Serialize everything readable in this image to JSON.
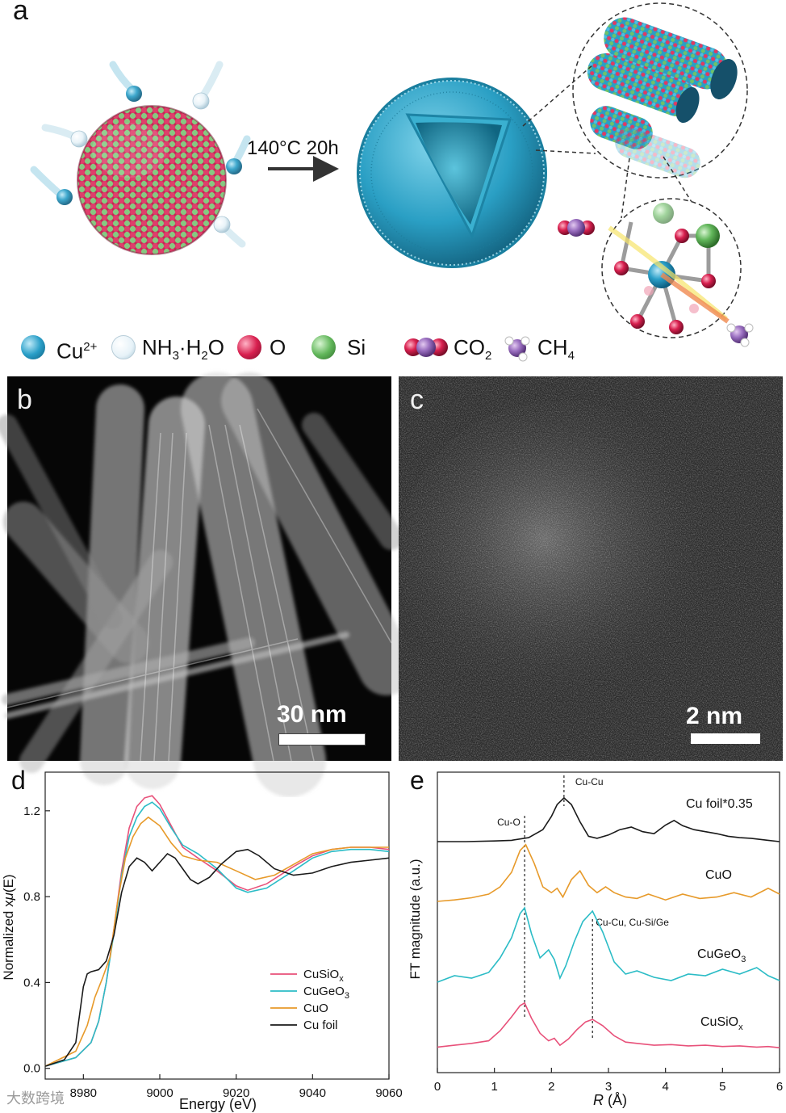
{
  "panels": {
    "a": {
      "letter": "a",
      "condition": "140°C 20h",
      "legend": [
        {
          "label": "Cu",
          "sup": "2+",
          "color": "#2a9fc8",
          "icon": "cu-sphere-icon"
        },
        {
          "label": "NH",
          "sub1": "3",
          "mid": "·H",
          "sub2": "2",
          "tail": "O",
          "color": "#dfeef5",
          "icon": "ammonia-water-sphere-icon"
        },
        {
          "label": "O",
          "color": "#d8204f",
          "icon": "oxygen-sphere-icon"
        },
        {
          "label": "Si",
          "color": "#62b75b",
          "icon": "silicon-sphere-icon"
        },
        {
          "label": "CO",
          "sub": "2",
          "icon": "co2-molecule-icon"
        },
        {
          "label": "CH",
          "sub": "4",
          "icon": "ch4-molecule-icon"
        }
      ]
    },
    "b": {
      "letter": "b",
      "scale": "30 nm"
    },
    "c": {
      "letter": "c",
      "scale": "2 nm"
    },
    "d": {
      "letter": "d"
    },
    "e": {
      "letter": "e"
    }
  },
  "chart_data": [
    {
      "id": "d",
      "type": "line",
      "xlabel": "Energy (eV)",
      "ylabel_parts": [
        "Normalized x",
        "μ",
        "(E)"
      ],
      "xlim": [
        8970,
        9060
      ],
      "ylim": [
        -0.05,
        1.38
      ],
      "xticks": [
        8980,
        9000,
        9020,
        9040,
        9060
      ],
      "yticks": [
        0.0,
        0.4,
        0.8,
        1.2
      ],
      "xtick_labels": [
        "8980",
        "9000",
        "9020",
        "9040",
        "9060"
      ],
      "ytick_labels": [
        "0.0",
        "0.4",
        "0.8",
        "1.2"
      ],
      "legend_position": "lower-right",
      "series": [
        {
          "name": "CuSiOx",
          "label_main": "CuSiO",
          "label_sub": "x",
          "color": "#e8517a",
          "x": [
            8970,
            8978,
            8982,
            8984,
            8986,
            8988,
            8990,
            8992,
            8994,
            8996,
            8998,
            9000,
            9003,
            9006,
            9010,
            9015,
            9020,
            9023,
            9028,
            9035,
            9040,
            9045,
            9050,
            9055,
            9060
          ],
          "y": [
            0.01,
            0.05,
            0.12,
            0.22,
            0.4,
            0.65,
            0.92,
            1.12,
            1.22,
            1.26,
            1.27,
            1.23,
            1.13,
            1.03,
            0.98,
            0.92,
            0.85,
            0.83,
            0.86,
            0.94,
            0.99,
            1.02,
            1.03,
            1.03,
            1.02
          ]
        },
        {
          "name": "CuGeO3",
          "label_main": "CuGeO",
          "label_sub": "3",
          "color": "#2bbcc6",
          "x": [
            8970,
            8978,
            8982,
            8984,
            8986,
            8988,
            8990,
            8992,
            8994,
            8996,
            8998,
            9000,
            9003,
            9006,
            9010,
            9015,
            9020,
            9023,
            9028,
            9035,
            9040,
            9045,
            9050,
            9055,
            9060
          ],
          "y": [
            0.01,
            0.05,
            0.12,
            0.22,
            0.4,
            0.63,
            0.9,
            1.08,
            1.17,
            1.22,
            1.24,
            1.21,
            1.12,
            1.04,
            1.0,
            0.93,
            0.84,
            0.82,
            0.84,
            0.92,
            0.98,
            1.01,
            1.02,
            1.02,
            1.01
          ]
        },
        {
          "name": "CuO",
          "label_main": "CuO",
          "label_sub": "",
          "color": "#e79a2a",
          "x": [
            8970,
            8978,
            8981,
            8983,
            8985,
            8987,
            8989,
            8991,
            8993,
            8995,
            8997,
            9000,
            9003,
            9006,
            9010,
            9015,
            9020,
            9025,
            9030,
            9035,
            9040,
            9045,
            9050,
            9055,
            9060
          ],
          "y": [
            0.01,
            0.08,
            0.2,
            0.33,
            0.42,
            0.52,
            0.78,
            0.98,
            1.08,
            1.14,
            1.17,
            1.13,
            1.05,
            0.99,
            0.97,
            0.96,
            0.92,
            0.88,
            0.9,
            0.95,
            1.0,
            1.02,
            1.03,
            1.03,
            1.03
          ]
        },
        {
          "name": "Cu foil",
          "label_main": "Cu foil",
          "label_sub": "",
          "color": "#1a1a1a",
          "x": [
            8970,
            8975,
            8978,
            8979,
            8980,
            8981,
            8982,
            8984,
            8986,
            8988,
            8990,
            8992,
            8994,
            8996,
            8998,
            9000,
            9002,
            9004,
            9006,
            9008,
            9010,
            9013,
            9016,
            9020,
            9023,
            9026,
            9030,
            9035,
            9040,
            9045,
            9050,
            9055,
            9060
          ],
          "y": [
            0.01,
            0.04,
            0.12,
            0.25,
            0.38,
            0.44,
            0.45,
            0.46,
            0.5,
            0.62,
            0.82,
            0.94,
            0.98,
            0.96,
            0.92,
            0.96,
            1.0,
            0.98,
            0.93,
            0.88,
            0.86,
            0.89,
            0.95,
            1.01,
            1.02,
            0.99,
            0.93,
            0.9,
            0.91,
            0.94,
            0.96,
            0.97,
            0.98
          ]
        }
      ]
    },
    {
      "id": "e",
      "type": "line",
      "xlabel_italic": "R",
      "xlabel_rest": " (Å)",
      "ylabel": "FT magnitude (a.u.)",
      "xlim": [
        0,
        6
      ],
      "xticks": [
        0,
        1,
        2,
        3,
        4,
        5,
        6
      ],
      "xtick_labels": [
        "0",
        "1",
        "2",
        "3",
        "4",
        "5",
        "6"
      ],
      "annotations": [
        {
          "text": "Cu-Cu",
          "x": 2.22
        },
        {
          "text": "Cu-O",
          "x": 1.53
        },
        {
          "text": "Cu-Cu, Cu-Si/Ge",
          "x": 2.72
        }
      ],
      "series": [
        {
          "name": "Cu foil*0.35",
          "label_main": "Cu foil*0.35",
          "label_sub": "",
          "color": "#1a1a1a",
          "x": [
            0,
            0.5,
            1,
            1.3,
            1.6,
            1.85,
            2.0,
            2.1,
            2.22,
            2.35,
            2.5,
            2.65,
            2.8,
            3.0,
            3.2,
            3.4,
            3.6,
            3.8,
            4.0,
            4.15,
            4.3,
            4.5,
            4.7,
            4.9,
            5.1,
            5.3,
            5.5,
            5.8,
            6.0
          ],
          "y": [
            0.0,
            0.0,
            0.01,
            0.02,
            0.06,
            0.18,
            0.38,
            0.56,
            0.66,
            0.56,
            0.3,
            0.08,
            0.05,
            0.1,
            0.18,
            0.22,
            0.15,
            0.12,
            0.25,
            0.32,
            0.24,
            0.18,
            0.15,
            0.12,
            0.08,
            0.06,
            0.05,
            0.02,
            0.0
          ]
        },
        {
          "name": "CuO",
          "label_main": "CuO",
          "label_sub": "",
          "color": "#e79a2a",
          "x": [
            0,
            0.3,
            0.6,
            0.9,
            1.1,
            1.3,
            1.45,
            1.55,
            1.7,
            1.85,
            2.0,
            2.1,
            2.2,
            2.35,
            2.5,
            2.65,
            2.8,
            2.95,
            3.1,
            3.3,
            3.5,
            3.7,
            4.0,
            4.3,
            4.6,
            4.9,
            5.2,
            5.5,
            5.8,
            6.0
          ],
          "y": [
            0.0,
            0.02,
            0.05,
            0.1,
            0.2,
            0.4,
            0.7,
            0.78,
            0.52,
            0.2,
            0.12,
            0.18,
            0.06,
            0.3,
            0.42,
            0.22,
            0.12,
            0.2,
            0.12,
            0.06,
            0.04,
            0.1,
            0.02,
            0.1,
            0.04,
            0.06,
            0.12,
            0.06,
            0.18,
            0.1
          ]
        },
        {
          "name": "CuGeO3",
          "label_main": "CuGeO",
          "label_sub": "3",
          "color": "#2bbcc6",
          "x": [
            0,
            0.3,
            0.6,
            0.9,
            1.1,
            1.3,
            1.45,
            1.53,
            1.65,
            1.8,
            1.95,
            2.05,
            2.15,
            2.25,
            2.4,
            2.55,
            2.72,
            2.9,
            3.1,
            3.3,
            3.5,
            3.8,
            4.1,
            4.4,
            4.7,
            5.0,
            5.3,
            5.6,
            5.8,
            6.0
          ],
          "y": [
            0.0,
            0.08,
            0.05,
            0.12,
            0.3,
            0.55,
            0.85,
            0.92,
            0.6,
            0.3,
            0.4,
            0.28,
            0.05,
            0.2,
            0.5,
            0.75,
            0.88,
            0.62,
            0.25,
            0.1,
            0.14,
            0.06,
            0.02,
            0.1,
            0.08,
            0.16,
            0.1,
            0.18,
            0.08,
            0.02
          ]
        },
        {
          "name": "CuSiOx",
          "label_main": "CuSiO",
          "label_sub": "x",
          "color": "#e8517a",
          "x": [
            0,
            0.3,
            0.6,
            0.9,
            1.1,
            1.3,
            1.45,
            1.53,
            1.65,
            1.8,
            1.95,
            2.05,
            2.15,
            2.3,
            2.45,
            2.6,
            2.72,
            2.9,
            3.1,
            3.3,
            3.5,
            3.8,
            4.1,
            4.4,
            4.7,
            5.0,
            5.3,
            5.6,
            5.8,
            6.0
          ],
          "y": [
            0.02,
            0.05,
            0.08,
            0.12,
            0.28,
            0.5,
            0.68,
            0.72,
            0.48,
            0.24,
            0.12,
            0.16,
            0.05,
            0.15,
            0.3,
            0.42,
            0.46,
            0.36,
            0.2,
            0.1,
            0.08,
            0.05,
            0.06,
            0.04,
            0.05,
            0.03,
            0.04,
            0.02,
            0.03,
            0.01
          ]
        }
      ]
    }
  ],
  "watermark": "大数跨境"
}
